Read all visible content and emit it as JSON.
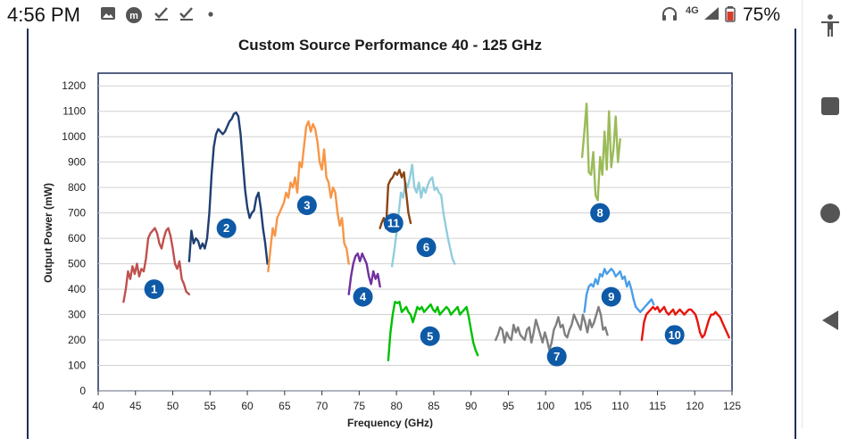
{
  "status_bar": {
    "time": "4:56 PM",
    "battery": "75%",
    "network": "4G",
    "icons": [
      "image-icon",
      "app-m-icon",
      "check-icon",
      "check-icon",
      "dot-icon",
      "headset-icon",
      "signal-icon",
      "battery-icon"
    ]
  },
  "nav_bar": {
    "buttons": [
      "accessibility-icon",
      "recents-square-icon",
      "home-circle-icon",
      "back-triangle-icon"
    ]
  },
  "colors": {
    "grid": "#d0d0d0",
    "plot_border": "#1f2f5a",
    "badge": "#0e5aa7"
  },
  "chart_data": {
    "type": "line",
    "title": "Custom Source Performance 40 - 125 GHz",
    "xlabel": "Frequency (GHz)",
    "ylabel": "Output Power (mW)",
    "xlim": [
      40,
      125
    ],
    "ylim": [
      0,
      1250
    ],
    "xticks": [
      40,
      45,
      50,
      55,
      60,
      65,
      70,
      75,
      80,
      85,
      90,
      95,
      100,
      105,
      110,
      115,
      120,
      125
    ],
    "yticks": [
      0,
      100,
      200,
      300,
      400,
      500,
      600,
      700,
      800,
      900,
      1000,
      1100,
      1200
    ],
    "grid": true,
    "series": [
      {
        "name": "1",
        "color": "#c0504d",
        "label_pos": [
          47.5,
          400
        ],
        "x": [
          43.4,
          43.7,
          44.0,
          44.3,
          44.6,
          44.9,
          45.2,
          45.5,
          45.8,
          46.1,
          46.4,
          46.7,
          47.0,
          47.3,
          47.6,
          47.9,
          48.2,
          48.5,
          48.8,
          49.1,
          49.4,
          49.7,
          50.0,
          50.3,
          50.6,
          50.9,
          51.2,
          51.5,
          51.8,
          52.2
        ],
        "y": [
          350,
          400,
          470,
          440,
          490,
          460,
          500,
          450,
          480,
          470,
          520,
          600,
          620,
          630,
          640,
          620,
          580,
          560,
          600,
          630,
          640,
          610,
          560,
          500,
          480,
          510,
          440,
          420,
          390,
          380
        ]
      },
      {
        "name": "2",
        "color": "#1f3e73",
        "label_pos": [
          57.2,
          640
        ],
        "x": [
          52.2,
          52.5,
          52.8,
          53.1,
          53.4,
          53.7,
          54.0,
          54.3,
          54.6,
          54.9,
          55.2,
          55.5,
          55.8,
          56.1,
          56.4,
          56.7,
          57.0,
          57.3,
          57.6,
          57.9,
          58.2,
          58.5,
          58.8,
          59.1,
          59.4,
          59.7,
          60.0,
          60.3,
          60.6,
          60.9,
          61.2,
          61.5,
          61.8,
          62.1,
          62.4,
          62.7
        ],
        "y": [
          510,
          630,
          580,
          600,
          590,
          560,
          580,
          560,
          600,
          700,
          850,
          960,
          1010,
          1030,
          1020,
          1010,
          1020,
          1040,
          1060,
          1070,
          1090,
          1095,
          1080,
          1010,
          900,
          790,
          720,
          680,
          700,
          710,
          760,
          780,
          720,
          640,
          580,
          500
        ]
      },
      {
        "name": "3",
        "color": "#f79646",
        "label_pos": [
          68.0,
          730
        ],
        "x": [
          62.8,
          63.1,
          63.4,
          63.7,
          64.0,
          64.3,
          64.6,
          64.9,
          65.2,
          65.5,
          65.8,
          66.1,
          66.4,
          66.7,
          67.0,
          67.3,
          67.6,
          67.9,
          68.2,
          68.5,
          68.8,
          69.1,
          69.4,
          69.7,
          70.0,
          70.3,
          70.6,
          70.9,
          71.2,
          71.5,
          71.8,
          72.1,
          72.4,
          72.7,
          73.0,
          73.3,
          73.6
        ],
        "y": [
          470,
          560,
          640,
          610,
          680,
          700,
          720,
          740,
          780,
          760,
          820,
          800,
          840,
          780,
          900,
          880,
          960,
          1040,
          1060,
          1020,
          1050,
          1030,
          980,
          900,
          870,
          950,
          840,
          820,
          760,
          800,
          780,
          700,
          650,
          680,
          580,
          560,
          500
        ]
      },
      {
        "name": "4",
        "color": "#7030a0",
        "label_pos": [
          75.5,
          370
        ],
        "x": [
          73.6,
          73.9,
          74.2,
          74.5,
          74.8,
          75.1,
          75.4,
          75.7,
          76.0,
          76.3,
          76.6,
          76.9,
          77.2,
          77.5,
          77.8
        ],
        "y": [
          380,
          450,
          500,
          530,
          540,
          510,
          540,
          520,
          500,
          450,
          420,
          470,
          440,
          460,
          410
        ]
      },
      {
        "name": "5",
        "color": "#00c000",
        "label_pos": [
          84.5,
          215
        ],
        "x": [
          78.9,
          79.2,
          79.5,
          79.8,
          80.1,
          80.4,
          80.7,
          81.0,
          81.3,
          81.6,
          81.9,
          82.2,
          82.5,
          82.8,
          83.1,
          83.4,
          83.7,
          84.0,
          84.3,
          84.6,
          84.9,
          85.2,
          85.5,
          85.8,
          86.1,
          86.4,
          86.7,
          87.0,
          87.3,
          87.6,
          87.9,
          88.2,
          88.5,
          88.8,
          89.1,
          89.4,
          89.7,
          90.0,
          90.3,
          90.6,
          90.9
        ],
        "y": [
          120,
          230,
          300,
          350,
          345,
          350,
          310,
          320,
          330,
          310,
          300,
          270,
          300,
          330,
          320,
          330,
          310,
          320,
          330,
          340,
          320,
          310,
          330,
          300,
          310,
          320,
          330,
          320,
          300,
          310,
          320,
          330,
          300,
          310,
          320,
          330,
          290,
          240,
          190,
          160,
          140
        ]
      },
      {
        "name": "6",
        "color": "#92cddc",
        "label_pos": [
          84.0,
          565
        ],
        "x": [
          79.4,
          79.7,
          80.0,
          80.3,
          80.6,
          80.9,
          81.2,
          81.5,
          81.8,
          82.1,
          82.4,
          82.7,
          83.0,
          83.3,
          83.6,
          83.9,
          84.2,
          84.5,
          84.8,
          85.1,
          85.4,
          85.7,
          86.0,
          86.3,
          86.6,
          86.9,
          87.2,
          87.5,
          87.8
        ],
        "y": [
          490,
          550,
          620,
          700,
          780,
          760,
          820,
          800,
          840,
          890,
          800,
          780,
          820,
          760,
          800,
          780,
          810,
          830,
          840,
          790,
          800,
          780,
          770,
          700,
          650,
          600,
          560,
          520,
          500
        ]
      },
      {
        "name": "7",
        "color": "#7f7f7f",
        "label_pos": [
          101.5,
          135
        ],
        "x": [
          93.3,
          93.6,
          93.9,
          94.2,
          94.5,
          94.8,
          95.1,
          95.4,
          95.7,
          96.0,
          96.3,
          96.6,
          96.9,
          97.2,
          97.5,
          97.8,
          98.1,
          98.4,
          98.7,
          99.0,
          99.3,
          99.6,
          99.9,
          100.2,
          100.5,
          100.8,
          101.1,
          101.4,
          101.7,
          102.0,
          102.3,
          102.6,
          102.9,
          103.2,
          103.5,
          103.8,
          104.1,
          104.4,
          104.7,
          105.0,
          105.3,
          105.6,
          105.9,
          106.2,
          106.5,
          106.8,
          107.1,
          107.4,
          107.7,
          108.0,
          108.3
        ],
        "y": [
          200,
          220,
          250,
          240,
          190,
          230,
          210,
          200,
          260,
          230,
          250,
          220,
          210,
          200,
          240,
          250,
          190,
          230,
          280,
          250,
          220,
          190,
          230,
          200,
          160,
          190,
          240,
          260,
          290,
          250,
          260,
          220,
          210,
          240,
          260,
          300,
          280,
          260,
          240,
          300,
          270,
          230,
          280,
          250,
          270,
          300,
          330,
          300,
          240,
          250,
          220
        ]
      },
      {
        "name": "8",
        "color": "#9bbb59",
        "label_pos": [
          107.3,
          700
        ],
        "x": [
          104.9,
          105.2,
          105.5,
          105.8,
          106.1,
          106.4,
          106.7,
          107.0,
          107.3,
          107.6,
          107.9,
          108.2,
          108.5,
          108.8,
          109.1,
          109.4,
          109.7,
          110.0
        ],
        "y": [
          920,
          1020,
          1130,
          860,
          850,
          940,
          770,
          750,
          920,
          850,
          1020,
          870,
          1100,
          880,
          950,
          1080,
          900,
          990
        ]
      },
      {
        "name": "9",
        "color": "#4a9ee8",
        "label_pos": [
          108.8,
          370
        ],
        "x": [
          105.2,
          105.5,
          105.8,
          106.1,
          106.4,
          106.7,
          107.0,
          107.3,
          107.6,
          107.9,
          108.2,
          108.5,
          108.8,
          109.1,
          109.4,
          109.7,
          110.0,
          110.3,
          110.6,
          110.9,
          111.2,
          111.5,
          111.8,
          112.1,
          112.4,
          112.7,
          113.0,
          113.3,
          113.6,
          113.9,
          114.2,
          114.5
        ],
        "y": [
          310,
          380,
          410,
          420,
          410,
          440,
          420,
          460,
          450,
          480,
          460,
          470,
          480,
          470,
          450,
          460,
          470,
          440,
          450,
          410,
          430,
          400,
          360,
          330,
          320,
          310,
          320,
          330,
          340,
          350,
          360,
          340
        ]
      },
      {
        "name": "10",
        "color": "#e8140c",
        "label_pos": [
          117.3,
          220
        ],
        "x": [
          112.9,
          113.2,
          113.5,
          113.8,
          114.1,
          114.4,
          114.7,
          115.0,
          115.3,
          115.6,
          115.9,
          116.2,
          116.5,
          116.8,
          117.1,
          117.4,
          117.7,
          118.0,
          118.3,
          118.6,
          118.9,
          119.2,
          119.5,
          119.8,
          120.1,
          120.4,
          120.7,
          121.0,
          121.3,
          121.6,
          121.9,
          122.2,
          122.5,
          122.8,
          123.1,
          123.4,
          123.7,
          124.0,
          124.3,
          124.6
        ],
        "y": [
          200,
          270,
          300,
          310,
          320,
          330,
          320,
          330,
          310,
          320,
          330,
          310,
          300,
          310,
          320,
          300,
          310,
          320,
          310,
          300,
          310,
          320,
          320,
          310,
          300,
          270,
          230,
          210,
          220,
          250,
          280,
          300,
          300,
          310,
          300,
          290,
          270,
          250,
          230,
          210
        ]
      },
      {
        "name": "11",
        "color": "#8b4513",
        "label_pos": [
          79.6,
          660
        ],
        "x": [
          77.8,
          78.0,
          78.3,
          78.6,
          78.9,
          79.2,
          79.5,
          79.8,
          80.1,
          80.4,
          80.7,
          81.0,
          81.3,
          81.6,
          81.9
        ],
        "y": [
          640,
          660,
          680,
          640,
          810,
          830,
          840,
          860,
          850,
          870,
          840,
          860,
          780,
          700,
          660
        ]
      }
    ]
  }
}
